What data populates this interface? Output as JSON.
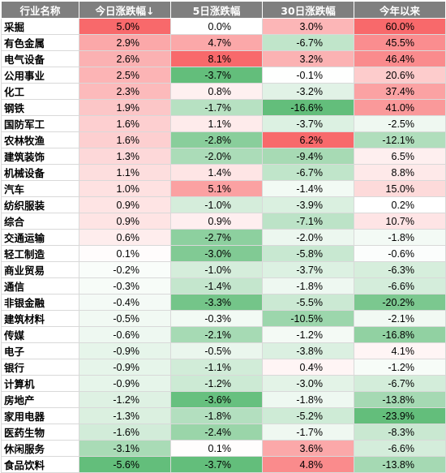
{
  "chart_data": {
    "type": "heatmap",
    "columns": [
      "行业名称",
      "今日涨跌幅↓",
      "5日涨跌幅",
      "30日涨跌幅",
      "今年以来"
    ],
    "unit": "%",
    "rows": [
      {
        "name": "采掘",
        "values": [
          5.0,
          0.0,
          3.0,
          60.0
        ]
      },
      {
        "name": "有色金属",
        "values": [
          2.9,
          4.7,
          -6.7,
          45.5
        ]
      },
      {
        "name": "电气设备",
        "values": [
          2.6,
          8.1,
          3.2,
          46.4
        ]
      },
      {
        "name": "公用事业",
        "values": [
          2.5,
          -3.7,
          -0.1,
          20.6
        ]
      },
      {
        "name": "化工",
        "values": [
          2.3,
          0.8,
          -3.2,
          37.4
        ]
      },
      {
        "name": "钢铁",
        "values": [
          1.9,
          -1.7,
          -16.6,
          41.0
        ]
      },
      {
        "name": "国防军工",
        "values": [
          1.6,
          1.1,
          -3.7,
          -2.5
        ]
      },
      {
        "name": "农林牧渔",
        "values": [
          1.6,
          -2.8,
          6.2,
          -12.1
        ]
      },
      {
        "name": "建筑装饰",
        "values": [
          1.3,
          -2.0,
          -9.4,
          6.5
        ]
      },
      {
        "name": "机械设备",
        "values": [
          1.1,
          1.4,
          -6.7,
          8.8
        ]
      },
      {
        "name": "汽车",
        "values": [
          1.0,
          5.1,
          -1.4,
          15.0
        ]
      },
      {
        "name": "纺织服装",
        "values": [
          0.9,
          -1.0,
          -3.9,
          0.2
        ]
      },
      {
        "name": "综合",
        "values": [
          0.9,
          0.9,
          -7.1,
          10.7
        ]
      },
      {
        "name": "交通运输",
        "values": [
          0.6,
          -2.7,
          -2.0,
          -1.8
        ]
      },
      {
        "name": "轻工制造",
        "values": [
          0.1,
          -3.0,
          -5.8,
          -0.6
        ]
      },
      {
        "name": "商业贸易",
        "values": [
          -0.2,
          -1.0,
          -3.7,
          -6.3
        ]
      },
      {
        "name": "通信",
        "values": [
          -0.3,
          -1.4,
          -1.8,
          -6.6
        ]
      },
      {
        "name": "非银金融",
        "values": [
          -0.4,
          -3.3,
          -5.5,
          -20.2
        ]
      },
      {
        "name": "建筑材料",
        "values": [
          -0.5,
          -0.3,
          -10.5,
          -2.1
        ]
      },
      {
        "name": "传媒",
        "values": [
          -0.6,
          -2.1,
          -1.2,
          -16.8
        ]
      },
      {
        "name": "电子",
        "values": [
          -0.9,
          -0.5,
          -3.8,
          4.1
        ]
      },
      {
        "name": "银行",
        "values": [
          -0.9,
          -1.1,
          0.4,
          -1.2
        ]
      },
      {
        "name": "计算机",
        "values": [
          -0.9,
          -1.2,
          -3.0,
          -6.7
        ]
      },
      {
        "name": "房地产",
        "values": [
          -1.2,
          -3.6,
          -1.8,
          -13.8
        ]
      },
      {
        "name": "家用电器",
        "values": [
          -1.3,
          -1.8,
          -5.2,
          -23.9
        ]
      },
      {
        "name": "医药生物",
        "values": [
          -1.6,
          -2.4,
          -1.7,
          -8.3
        ]
      },
      {
        "name": "休闲服务",
        "values": [
          -3.1,
          0.1,
          3.6,
          -6.6
        ]
      },
      {
        "name": "食品饮料",
        "values": [
          -5.6,
          -3.7,
          4.8,
          -13.8
        ]
      }
    ]
  },
  "colors": {
    "header_bg": "#7f7f7f",
    "header_text": "#ffffff",
    "positive": "#f8696b",
    "negative": "#63be7b",
    "neutral": "#ffffff",
    "border": "#d9d9d9"
  }
}
